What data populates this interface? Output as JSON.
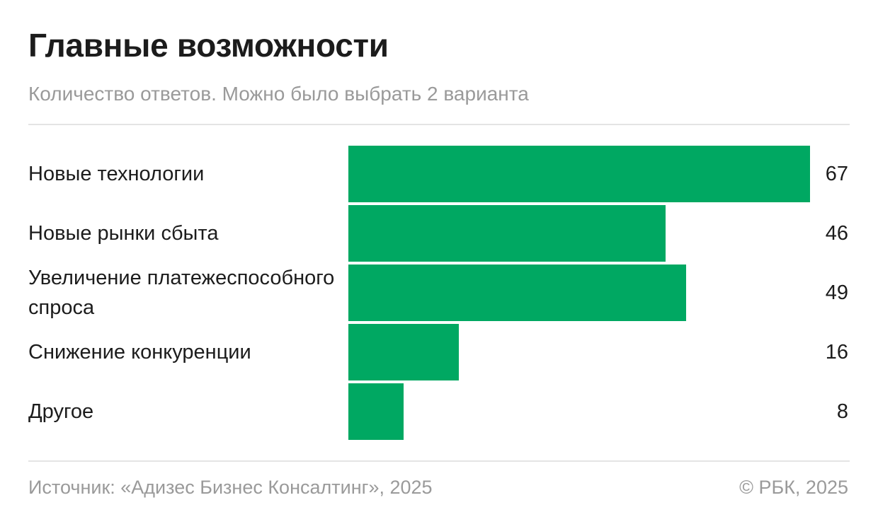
{
  "title": "Главные возможности",
  "subtitle": "Количество ответов. Можно было выбрать 2 варианта",
  "footer": {
    "source": "Источник: «Адизес Бизнес Консалтинг», 2025",
    "copyright": "© РБК, 2025"
  },
  "colors": {
    "bar": "#00a862",
    "text": "#1c1c1c",
    "muted": "#9a9a9a",
    "rule": "#e4e4e4"
  },
  "chart_data": {
    "type": "bar",
    "orientation": "horizontal",
    "title": "Главные возможности",
    "subtitle": "Количество ответов. Можно было выбрать 2 варианта",
    "categories": [
      "Новые технологии",
      "Новые рынки сбыта",
      "Увеличение платежеспособного спроса",
      "Снижение конкуренции",
      "Другое"
    ],
    "values": [
      67,
      46,
      49,
      16,
      8
    ],
    "value_labels": [
      "67",
      "46",
      "49",
      "16",
      "8"
    ],
    "xlim": [
      0,
      67
    ],
    "grid": false,
    "legend": "none"
  }
}
